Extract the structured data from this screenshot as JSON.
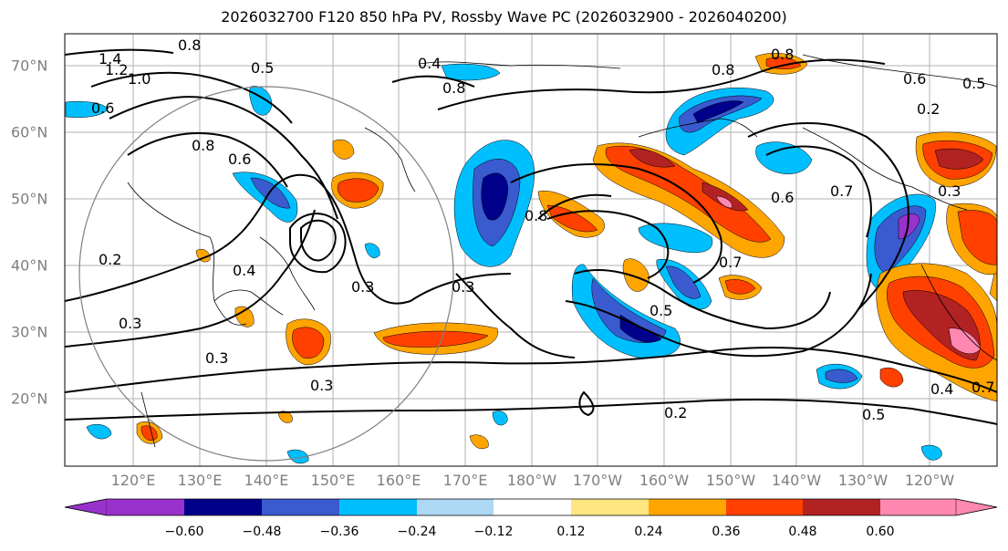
{
  "title": "2026032700 F120 850 hPa PV, Rossby Wave PC (2026032900 - 2026040200)",
  "latitude_labels": [
    "70°N",
    "60°N",
    "50°N",
    "40°N",
    "30°N",
    "20°N"
  ],
  "longitude_labels": [
    "120°E",
    "130°E",
    "140°E",
    "150°E",
    "160°E",
    "170°E",
    "180°W",
    "170°W",
    "160°W",
    "150°W",
    "140°W",
    "130°W",
    "120°W"
  ],
  "colorbar": {
    "ticks": [
      "−0.60",
      "−0.48",
      "−0.36",
      "−0.24",
      "−0.12",
      "0.12",
      "0.24",
      "0.36",
      "0.48",
      "0.60"
    ],
    "colors": [
      "#9932cc",
      "#00008b",
      "#3a5bd0",
      "#00bfff",
      "#add8f4",
      "#ffffff",
      "#ffe680",
      "#ffa500",
      "#ff4000",
      "#b22222",
      "#ff88b0"
    ]
  },
  "contour_labels": [
    "1.4",
    "1.2",
    "1.0",
    "0.8",
    "0.5",
    "0.6",
    "0.4",
    "0.8",
    "0.8",
    "0.6",
    "0.5",
    "0.2",
    "0.8",
    "0.6",
    "0.8",
    "0.6",
    "0.7",
    "0.8",
    "0.2",
    "0.4",
    "0.3",
    "0.3",
    "0.3",
    "0.7",
    "0.5",
    "0.3",
    "0.3",
    "0.2",
    "0.5",
    "0.4",
    "0.7",
    "0.3"
  ]
}
